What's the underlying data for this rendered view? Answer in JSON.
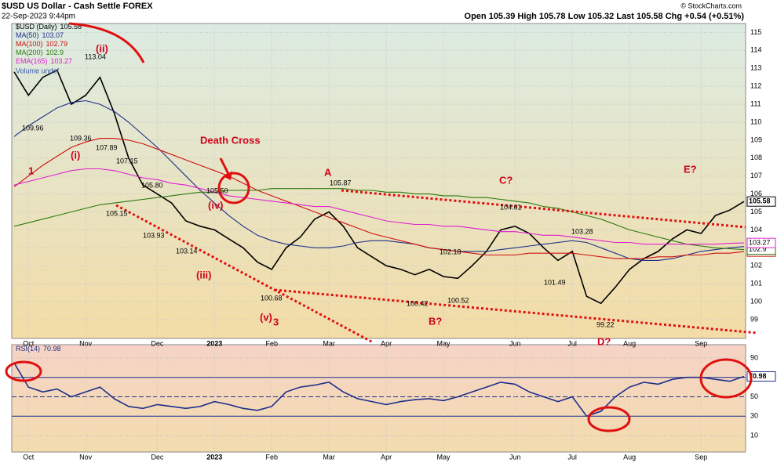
{
  "header": {
    "symbol": "$USD US Dollar - Cash Settle FOREX",
    "date": "22-Sep-2023 9:44pm",
    "quote": "Open 105.39 High 105.78 Low 105.32 Last 105.58 Chg +0.54 (+0.51%)",
    "credit": "© StockCharts.com"
  },
  "chart_data": [
    {
      "type": "line",
      "title": "$USD (Daily)",
      "categories": [
        null,
        "Oct",
        null,
        null,
        null,
        "Nov",
        null,
        null,
        null,
        null,
        "Dec",
        null,
        null,
        null,
        "2023",
        null,
        null,
        null,
        "Feb",
        null,
        null,
        null,
        "Mar",
        null,
        null,
        null,
        "Apr",
        null,
        null,
        null,
        "May",
        null,
        null,
        null,
        null,
        "Jun",
        null,
        null,
        null,
        "Jul",
        null,
        null,
        null,
        "Aug",
        null,
        null,
        null,
        null,
        "Sep",
        null,
        null,
        null
      ],
      "ylim": [
        97.95,
        115.5
      ],
      "yticks": [
        99,
        100,
        101,
        102,
        103,
        104,
        105,
        106,
        107,
        108,
        109,
        110,
        111,
        112,
        113,
        114,
        115
      ],
      "series": [
        {
          "name": "$USD (Daily)",
          "color": "#000000",
          "last": 105.58,
          "values": [
            112.8,
            111.5,
            112.5,
            112.9,
            111.0,
            111.5,
            112.5,
            110.5,
            108.0,
            106.5,
            106.0,
            105.5,
            104.5,
            104.2,
            104.0,
            103.5,
            103.0,
            102.2,
            101.8,
            103.0,
            103.6,
            104.6,
            105.0,
            104.2,
            103.0,
            102.5,
            102.0,
            101.8,
            101.5,
            101.8,
            101.4,
            101.3,
            102.0,
            102.8,
            104.0,
            104.2,
            103.8,
            103.0,
            102.3,
            102.8,
            100.3,
            99.9,
            100.8,
            101.8,
            102.4,
            102.8,
            103.5,
            104.0,
            103.8,
            104.8,
            105.1,
            105.58
          ]
        },
        {
          "name": "MA(50)",
          "color": "#1c2f8a",
          "last": 103.07,
          "values": [
            109.2,
            109.8,
            110.3,
            110.8,
            111.1,
            111.2,
            111.0,
            110.6,
            110.0,
            109.3,
            108.6,
            107.8,
            107.0,
            106.2,
            105.5,
            104.8,
            104.2,
            103.7,
            103.4,
            103.2,
            103.1,
            103.0,
            103.0,
            103.1,
            103.3,
            103.4,
            103.4,
            103.3,
            103.2,
            103.0,
            102.9,
            102.8,
            102.8,
            102.8,
            102.9,
            103.0,
            103.1,
            103.2,
            103.3,
            103.4,
            103.3,
            103.0,
            102.7,
            102.4,
            102.3,
            102.3,
            102.4,
            102.6,
            102.8,
            102.9,
            103.0,
            103.07
          ]
        },
        {
          "name": "MA(100)",
          "color": "#d01010",
          "last": 102.79,
          "values": [
            106.4,
            107.0,
            107.6,
            108.1,
            108.6,
            108.9,
            109.1,
            109.1,
            109.0,
            108.8,
            108.5,
            108.2,
            107.9,
            107.6,
            107.3,
            107.0,
            106.6,
            106.2,
            105.9,
            105.6,
            105.3,
            105.0,
            104.7,
            104.4,
            104.1,
            103.8,
            103.6,
            103.4,
            103.2,
            103.0,
            102.9,
            102.8,
            102.7,
            102.6,
            102.6,
            102.6,
            102.7,
            102.7,
            102.7,
            102.7,
            102.6,
            102.5,
            102.4,
            102.4,
            102.4,
            102.5,
            102.5,
            102.6,
            102.6,
            102.7,
            102.7,
            102.79
          ]
        },
        {
          "name": "MA(200)",
          "color": "#2a7a10",
          "last": 102.9,
          "values": [
            104.2,
            104.4,
            104.6,
            104.8,
            105.0,
            105.2,
            105.4,
            105.5,
            105.6,
            105.7,
            105.8,
            105.9,
            106.0,
            106.1,
            106.1,
            106.2,
            106.2,
            106.2,
            106.3,
            106.3,
            106.3,
            106.3,
            106.3,
            106.3,
            106.2,
            106.2,
            106.1,
            106.1,
            106.0,
            106.0,
            105.9,
            105.9,
            105.8,
            105.8,
            105.7,
            105.6,
            105.5,
            105.3,
            105.2,
            105.0,
            104.8,
            104.6,
            104.3,
            104.0,
            103.8,
            103.6,
            103.4,
            103.2,
            103.1,
            103.0,
            102.95,
            102.9
          ]
        },
        {
          "name": "EMA(165)",
          "color": "#e020d0",
          "last": 103.27,
          "values": [
            106.5,
            106.7,
            106.9,
            107.1,
            107.3,
            107.4,
            107.4,
            107.3,
            107.1,
            106.9,
            106.8,
            106.6,
            106.5,
            106.3,
            106.1,
            105.9,
            105.8,
            105.7,
            105.6,
            105.5,
            105.4,
            105.3,
            105.3,
            105.1,
            104.9,
            104.7,
            104.5,
            104.4,
            104.3,
            104.3,
            104.2,
            104.2,
            104.1,
            104.0,
            103.9,
            103.9,
            103.8,
            103.7,
            103.7,
            103.6,
            103.5,
            103.4,
            103.3,
            103.3,
            103.2,
            103.2,
            103.2,
            103.2,
            103.2,
            103.2,
            103.25,
            103.27
          ]
        }
      ],
      "volume": "Volume undef",
      "annotations": [
        "Death Cross",
        "1",
        "(i)",
        "(ii)",
        "(iii)",
        "(iv)",
        "(v)",
        "3",
        "A",
        "B?",
        "C?",
        "D?",
        "E?",
        "113.04",
        "109.96",
        "109.36",
        "107.89",
        "107.15",
        "105.80",
        "105.15",
        "103.93",
        "103.14",
        "105.50",
        "100.68",
        "105.87",
        "100.42",
        "102.18",
        "100.52",
        "104.61",
        "101.49",
        "103.28",
        "99.22"
      ]
    },
    {
      "type": "line",
      "title": "RSI(14)",
      "ylim": [
        -7,
        103.7
      ],
      "yticks": [
        10,
        30,
        50,
        70,
        90
      ],
      "series": [
        {
          "name": "RSI(14)",
          "color": "#1c2f8a",
          "last": 70.98,
          "values": [
            85,
            60,
            55,
            58,
            50,
            55,
            60,
            48,
            40,
            38,
            42,
            40,
            38,
            40,
            45,
            42,
            38,
            36,
            40,
            55,
            60,
            62,
            65,
            55,
            48,
            45,
            42,
            45,
            47,
            48,
            46,
            50,
            55,
            60,
            65,
            63,
            55,
            50,
            45,
            50,
            30,
            35,
            50,
            60,
            65,
            63,
            68,
            70,
            70,
            68,
            66,
            70.98
          ]
        }
      ]
    }
  ]
}
